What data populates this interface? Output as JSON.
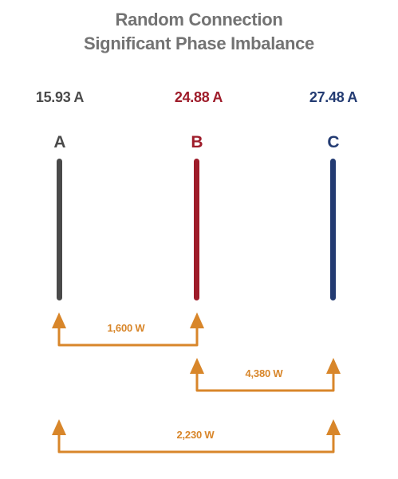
{
  "title": {
    "line1": "Random Connection",
    "line2": "Significant Phase Imbalance"
  },
  "phases": [
    {
      "name": "A",
      "current": "15.93 A",
      "color": "#4a4a4a"
    },
    {
      "name": "B",
      "current": "24.88 A",
      "color": "#9e1c2a"
    },
    {
      "name": "C",
      "current": "27.48 A",
      "color": "#233b72"
    }
  ],
  "connections": [
    {
      "from": "A",
      "to": "B",
      "power": "1,600 W"
    },
    {
      "from": "B",
      "to": "C",
      "power": "4,380 W"
    },
    {
      "from": "A",
      "to": "C",
      "power": "2,230 W"
    }
  ],
  "colors": {
    "title": "#737373",
    "arrow": "#D8862A"
  }
}
